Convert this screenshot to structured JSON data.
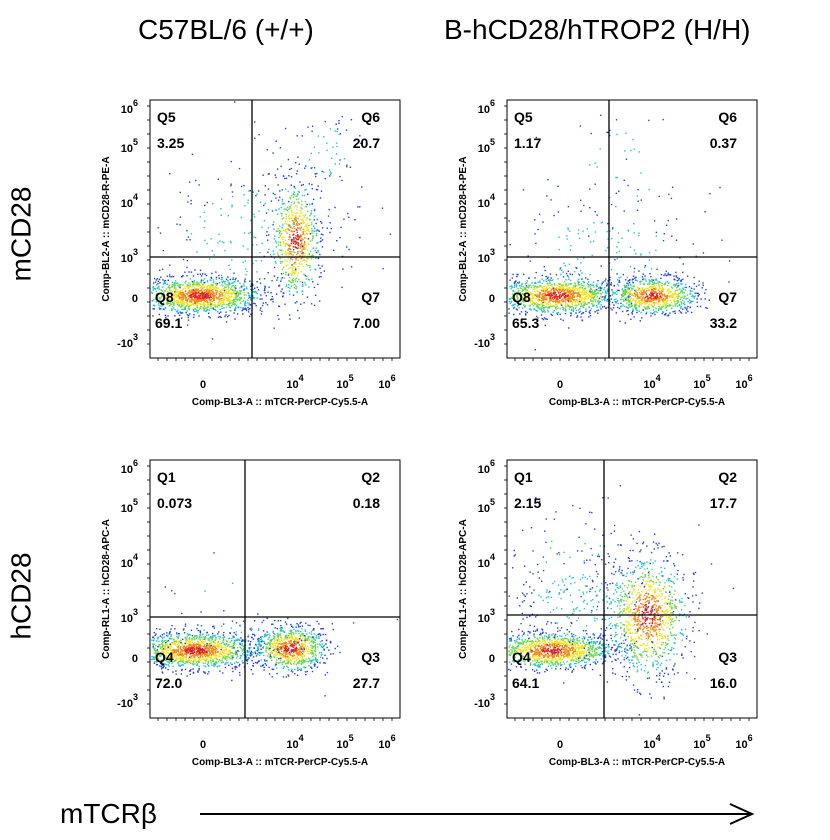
{
  "column_titles": [
    "C57BL/6 (+/+)",
    "B-hCD28/hTROP2 (H/H)"
  ],
  "row_titles": [
    "mCD28",
    "hCD28"
  ],
  "bottom_label": "mTCRβ",
  "chart_data": [
    {
      "type": "scatter",
      "title": "",
      "xlabel": "Comp-BL3-A :: mTCR-PerCP-Cy5.5-A",
      "ylabel": "Comp-BL2-A :: mCD28-R-PE-A",
      "x_ticks": [
        "0",
        "10",
        "10",
        "10"
      ],
      "x_tick_exponents": [
        "",
        "4",
        "5",
        "6"
      ],
      "y_ticks": [
        "-10",
        "0",
        "10",
        "10",
        "10",
        "10"
      ],
      "y_tick_exponents": [
        "3",
        "",
        "3",
        "4",
        "5",
        "6"
      ],
      "quadrants": [
        {
          "name": "Q5",
          "value": "3.25"
        },
        {
          "name": "Q6",
          "value": "20.7"
        },
        {
          "name": "Q7",
          "value": "7.00"
        },
        {
          "name": "Q8",
          "value": "69.1"
        }
      ]
    },
    {
      "type": "scatter",
      "title": "",
      "xlabel": "Comp-BL3-A :: mTCR-PerCP-Cy5.5-A",
      "ylabel": "Comp-BL2-A :: mCD28-R-PE-A",
      "x_ticks": [
        "0",
        "10",
        "10",
        "10"
      ],
      "x_tick_exponents": [
        "",
        "4",
        "5",
        "6"
      ],
      "y_ticks": [
        "-10",
        "0",
        "10",
        "10",
        "10",
        "10"
      ],
      "y_tick_exponents": [
        "3",
        "",
        "3",
        "4",
        "5",
        "6"
      ],
      "quadrants": [
        {
          "name": "Q5",
          "value": "1.17"
        },
        {
          "name": "Q6",
          "value": "0.37"
        },
        {
          "name": "Q7",
          "value": "33.2"
        },
        {
          "name": "Q8",
          "value": "65.3"
        }
      ]
    },
    {
      "type": "scatter",
      "title": "",
      "xlabel": "Comp-BL3-A :: mTCR-PerCP-Cy5.5-A",
      "ylabel": "Comp-RL1-A :: hCD28-APC-A",
      "x_ticks": [
        "0",
        "10",
        "10",
        "10"
      ],
      "x_tick_exponents": [
        "",
        "4",
        "5",
        "6"
      ],
      "y_ticks": [
        "-10",
        "0",
        "10",
        "10",
        "10",
        "10"
      ],
      "y_tick_exponents": [
        "3",
        "",
        "3",
        "4",
        "5",
        "6"
      ],
      "quadrants": [
        {
          "name": "Q1",
          "value": "0.073"
        },
        {
          "name": "Q2",
          "value": "0.18"
        },
        {
          "name": "Q3",
          "value": "27.7"
        },
        {
          "name": "Q4",
          "value": "72.0"
        }
      ]
    },
    {
      "type": "scatter",
      "title": "",
      "xlabel": "Comp-BL3-A :: mTCR-PerCP-Cy5.5-A",
      "ylabel": "Comp-RL1-A :: hCD28-APC-A",
      "x_ticks": [
        "0",
        "10",
        "10",
        "10"
      ],
      "x_tick_exponents": [
        "",
        "4",
        "5",
        "6"
      ],
      "y_ticks": [
        "-10",
        "0",
        "10",
        "10",
        "10",
        "10"
      ],
      "y_tick_exponents": [
        "3",
        "",
        "3",
        "4",
        "5",
        "6"
      ],
      "quadrants": [
        {
          "name": "Q1",
          "value": "2.15"
        },
        {
          "name": "Q2",
          "value": "17.7"
        },
        {
          "name": "Q3",
          "value": "16.0"
        },
        {
          "name": "Q4",
          "value": "64.1"
        }
      ]
    }
  ]
}
